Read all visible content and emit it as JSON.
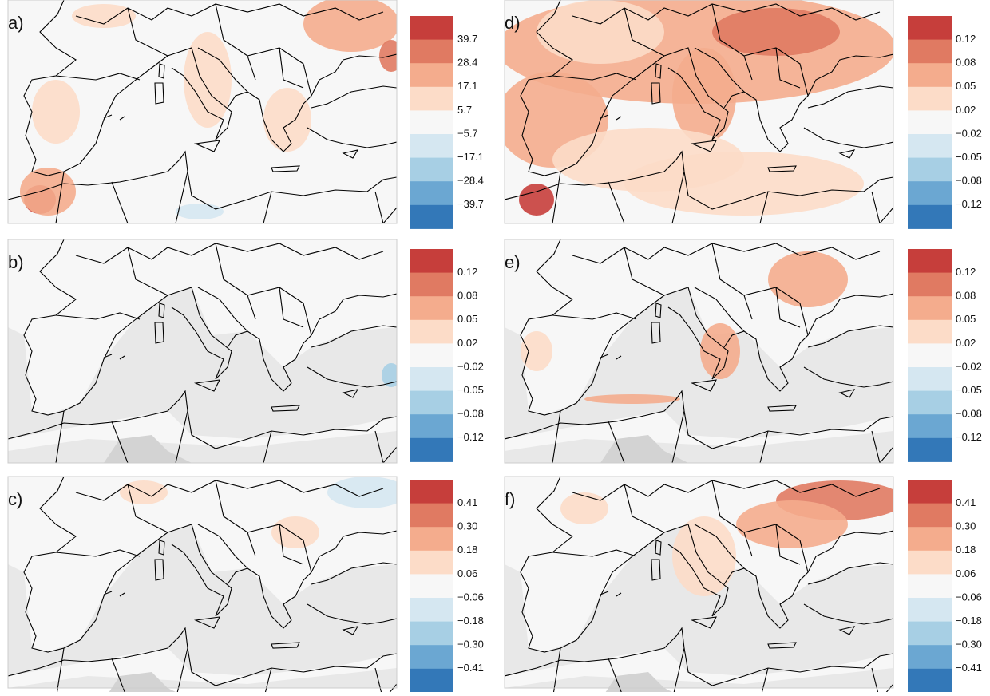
{
  "panels": [
    {
      "label": "a)",
      "ticks": [
        "39.7",
        "28.4",
        "17.1",
        "5.7",
        "−5.7",
        "−17.1",
        "−28.4",
        "−39.7"
      ]
    },
    {
      "label": "b)",
      "ticks": [
        "0.12",
        "0.08",
        "0.05",
        "0.02",
        "−0.02",
        "−0.05",
        "−0.08",
        "−0.12"
      ]
    },
    {
      "label": "c)",
      "ticks": [
        "0.41",
        "0.30",
        "0.18",
        "0.06",
        "−0.06",
        "−0.18",
        "−0.30",
        "−0.41"
      ]
    },
    {
      "label": "d)",
      "ticks": [
        "0.12",
        "0.08",
        "0.05",
        "0.02",
        "−0.02",
        "−0.05",
        "−0.08",
        "−0.12"
      ]
    },
    {
      "label": "e)",
      "ticks": [
        "0.12",
        "0.08",
        "0.05",
        "0.02",
        "−0.02",
        "−0.05",
        "−0.08",
        "−0.12"
      ]
    },
    {
      "label": "f)",
      "ticks": [
        "0.41",
        "0.30",
        "0.18",
        "0.06",
        "−0.06",
        "−0.18",
        "−0.30",
        "−0.41"
      ]
    }
  ],
  "colorbar_colors": [
    "#c63e3b",
    "#e07a62",
    "#f4ac8d",
    "#fcdcc8",
    "#f7f7f7",
    "#d5e7f1",
    "#a7cfe4",
    "#6ba7d2",
    "#3378b8"
  ]
}
